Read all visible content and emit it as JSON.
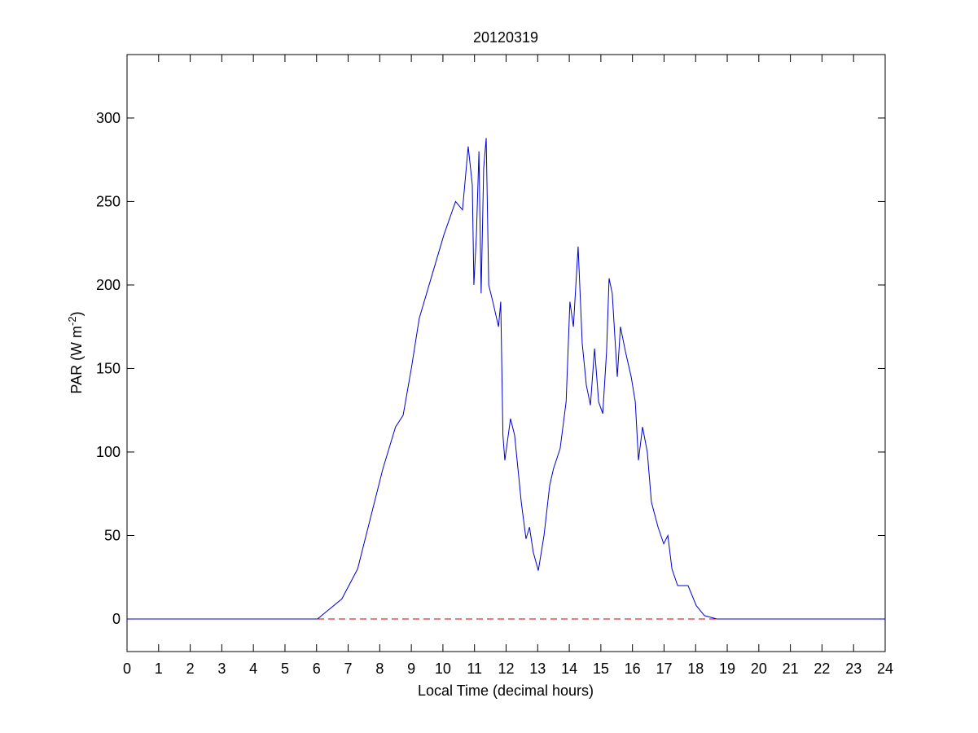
{
  "chart_data": {
    "type": "line",
    "title": "20120319",
    "x_label": "Local Time (decimal hours)",
    "y_label": {
      "text": "PAR (W m",
      "superscript": "-2",
      "suffix": ")"
    },
    "x": [
      0,
      6.03,
      6.8,
      7.3,
      7.7,
      8.1,
      8.5,
      8.74,
      9.0,
      9.25,
      9.64,
      10.03,
      10.4,
      10.62,
      10.8,
      10.93,
      10.98,
      11.06,
      11.14,
      11.21,
      11.29,
      11.37,
      11.45,
      11.58,
      11.76,
      11.83,
      11.9,
      11.96,
      12.14,
      12.27,
      12.48,
      12.63,
      12.74,
      12.86,
      13.02,
      13.2,
      13.38,
      13.5,
      13.71,
      13.9,
      14.02,
      14.13,
      14.28,
      14.41,
      14.54,
      14.67,
      14.8,
      14.93,
      15.06,
      15.18,
      15.26,
      15.36,
      15.52,
      15.62,
      15.78,
      15.96,
      16.09,
      16.19,
      16.32,
      16.47,
      16.6,
      16.81,
      16.99,
      17.12,
      17.25,
      17.43,
      17.76,
      18.02,
      18.28,
      18.67,
      19.95,
      24
    ],
    "series": [
      {
        "color": "#0000cc",
        "values": [
          0,
          0,
          12,
          30,
          60,
          90,
          115,
          122,
          150,
          180,
          205,
          230,
          250,
          245,
          283,
          260,
          200,
          230,
          280,
          195,
          270,
          288,
          200,
          190,
          175,
          190,
          110,
          95,
          120,
          110,
          70,
          48,
          55,
          40,
          29,
          50,
          80,
          90,
          102,
          130,
          190,
          175,
          223,
          165,
          140,
          128,
          162,
          130,
          123,
          160,
          204,
          195,
          145,
          175,
          160,
          145,
          130,
          95,
          115,
          100,
          70,
          55,
          45,
          50,
          30,
          20,
          20,
          8,
          2,
          0,
          0,
          0
        ]
      }
    ],
    "reference_lines": [
      {
        "y": 0,
        "color": "#cc0000",
        "style": "dashed"
      }
    ],
    "xlim": [
      0,
      24
    ],
    "ylim": [
      -19.5,
      338
    ],
    "xticks": [
      0,
      1,
      2,
      3,
      4,
      5,
      6,
      7,
      8,
      9,
      10,
      11,
      12,
      13,
      14,
      15,
      16,
      17,
      18,
      19,
      20,
      21,
      22,
      23,
      24
    ],
    "yticks": [
      0,
      50,
      100,
      150,
      200,
      250,
      300
    ]
  }
}
